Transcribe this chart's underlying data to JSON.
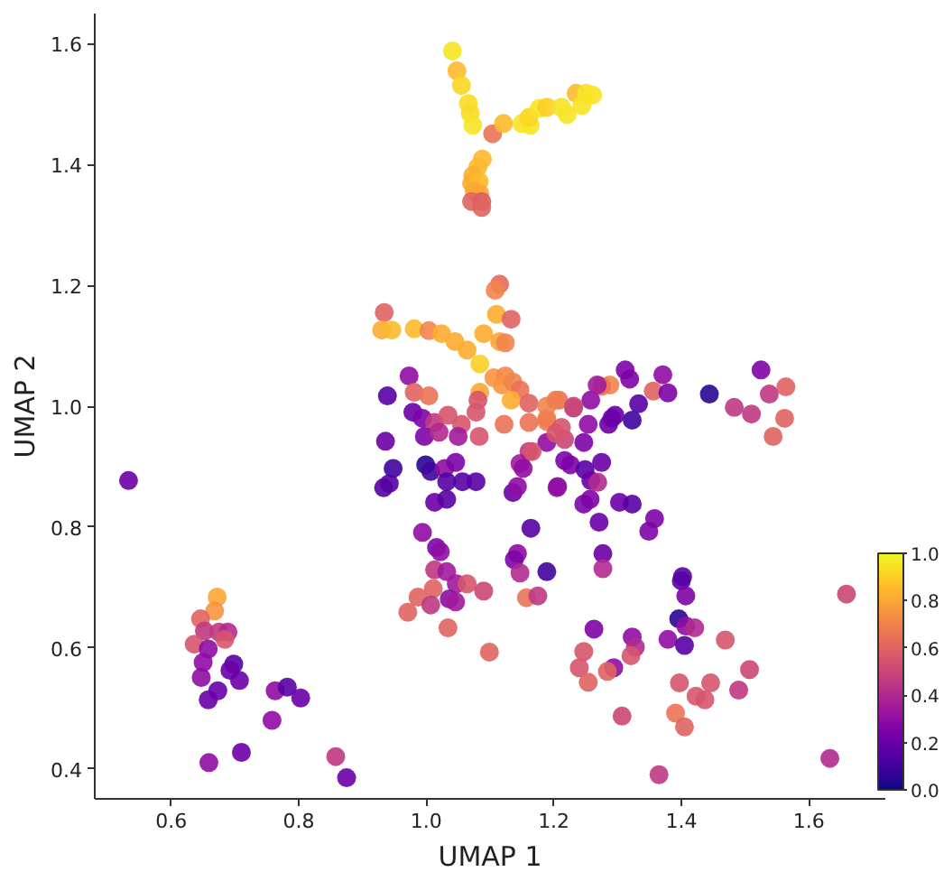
{
  "chart_data": {
    "type": "scatter",
    "xlabel": "UMAP 1",
    "ylabel": "UMAP 2",
    "x": [
      1.041,
      1.048,
      1.055,
      1.066,
      1.069,
      1.073,
      1.104,
      1.121,
      1.15,
      1.163,
      1.161,
      1.177,
      1.189,
      1.212,
      1.221,
      1.235,
      1.244,
      1.251,
      1.261,
      1.088,
      1.081,
      1.073,
      1.071,
      1.083,
      1.075,
      1.084,
      1.071,
      1.087,
      1.087,
      1.115,
      1.108,
      0.934,
      1.11,
      1.133,
      0.93,
      0.946,
      0.981,
      1.004,
      1.024,
      1.045,
      1.064,
      1.09,
      1.115,
      1.124,
      1.084,
      1.106,
      1.124,
      1.119,
      1.136,
      1.147,
      1.133,
      1.084,
      1.161,
      0.973,
      0.939,
      0.981,
      1.004,
      0.979,
      0.994,
      1.013,
      1.034,
      1.055,
      1.078,
      1.081,
      0.936,
      0.997,
      1.02,
      1.05,
      1.083,
      1.122,
      1.161,
      1.189,
      1.189,
      1.161,
      0.948,
      0.942,
      0.933,
      0.999,
      1.007,
      1.029,
      1.046,
      1.032,
      1.057,
      1.078,
      1.013,
      1.032,
      1.147,
      1.152,
      1.136,
      1.143,
      1.205,
      0.994,
      1.016,
      1.022,
      1.164,
      1.143,
      1.138,
      1.147,
      1.013,
      1.032,
      1.189,
      1.277,
      1.277,
      1.312,
      1.371,
      1.319,
      1.288,
      1.275,
      1.356,
      1.379,
      1.444,
      1.525,
      1.538,
      1.564,
      1.483,
      1.51,
      1.562,
      1.544,
      1.333,
      1.323,
      1.296,
      1.286,
      1.254,
      1.258,
      1.231,
      1.208,
      1.247,
      1.217,
      1.275,
      1.226,
      1.249,
      1.258,
      1.269,
      1.206,
      1.247,
      1.257,
      1.303,
      1.323,
      1.358,
      1.349,
      1.271,
      1.402,
      1.047,
      1.064,
      1.09,
      1.036,
      1.046,
      1.034,
      1.099,
      1.157,
      1.175,
      1.263,
      1.323,
      1.328,
      1.321,
      1.294,
      1.284,
      1.247,
      1.24,
      1.254,
      1.307,
      1.365,
      1.4,
      1.407,
      1.396,
      1.407,
      1.421,
      1.379,
      1.405,
      1.469,
      1.507,
      1.49,
      1.397,
      1.423,
      1.437,
      1.446,
      1.391,
      1.405,
      1.633,
      1.659,
      0.533,
      1.011,
      0.987,
      0.971,
      1.007,
      0.672,
      0.668,
      0.646,
      0.652,
      0.675,
      0.689,
      0.684,
      0.636,
      0.658,
      0.65,
      0.647,
      0.698,
      0.692,
      0.707,
      0.673,
      0.658,
      0.763,
      0.782,
      0.803,
      0.758,
      0.71,
      0.659,
      0.858,
      0.875,
      1.189,
      1.189,
      1.203,
      1.166,
      1.203,
      1.231,
      1.268,
      1.291,
      1.217,
      1.212
    ],
    "values": [
      1.588,
      1.555,
      1.531,
      1.501,
      1.485,
      1.465,
      1.451,
      1.468,
      1.468,
      1.465,
      1.478,
      1.493,
      1.495,
      1.495,
      1.483,
      1.518,
      1.498,
      1.518,
      1.515,
      1.409,
      1.396,
      1.382,
      1.369,
      1.372,
      1.356,
      1.352,
      1.339,
      1.339,
      1.329,
      1.202,
      1.192,
      1.155,
      1.152,
      1.144,
      1.126,
      1.126,
      1.128,
      1.125,
      1.12,
      1.107,
      1.093,
      1.12,
      1.107,
      1.105,
      1.07,
      1.047,
      1.05,
      1.035,
      1.04,
      1.027,
      1.01,
      1.023,
      1.005,
      1.05,
      1.017,
      1.023,
      1.017,
      0.99,
      0.98,
      0.973,
      0.985,
      0.97,
      0.99,
      1.01,
      0.942,
      0.95,
      0.957,
      0.95,
      0.95,
      0.97,
      0.973,
      0.98,
      0.94,
      0.925,
      0.897,
      0.872,
      0.865,
      0.903,
      0.892,
      0.897,
      0.907,
      0.875,
      0.875,
      0.875,
      0.841,
      0.846,
      0.905,
      0.897,
      0.857,
      0.867,
      0.865,
      0.791,
      0.766,
      0.759,
      0.798,
      0.756,
      0.746,
      0.724,
      0.729,
      0.726,
      0.726,
      0.756,
      0.731,
      1.06,
      1.052,
      1.045,
      1.035,
      1.033,
      1.025,
      1.022,
      1.02,
      1.06,
      1.02,
      1.032,
      0.998,
      0.987,
      0.98,
      0.95,
      1.004,
      0.977,
      0.985,
      0.97,
      0.97,
      1.01,
      0.997,
      1.01,
      0.94,
      0.945,
      0.907,
      0.903,
      0.895,
      0.877,
      0.874,
      0.867,
      0.838,
      0.846,
      0.841,
      0.838,
      0.814,
      0.793,
      0.808,
      0.718,
      0.706,
      0.706,
      0.694,
      0.681,
      0.676,
      0.633,
      0.593,
      0.683,
      0.686,
      0.631,
      0.618,
      0.601,
      0.587,
      0.567,
      0.561,
      0.594,
      0.567,
      0.543,
      0.487,
      0.39,
      0.711,
      0.686,
      0.648,
      0.636,
      0.633,
      0.614,
      0.604,
      0.613,
      0.564,
      0.53,
      0.542,
      0.52,
      0.514,
      0.542,
      0.492,
      0.469,
      0.417,
      0.689,
      0.877,
      0.698,
      0.684,
      0.659,
      0.671,
      0.684,
      0.661,
      0.648,
      0.628,
      0.626,
      0.626,
      0.614,
      0.606,
      0.598,
      0.576,
      0.551,
      0.573,
      0.563,
      0.546,
      0.529,
      0.514,
      0.529,
      0.535,
      0.517,
      0.48,
      0.427,
      0.41,
      0.42,
      0.385,
      1.0,
      0.975,
      0.955,
      0.925,
      1.01,
      1.0,
      1.035,
      0.98,
      0.91,
      0.965
    ],
    "cvalues": [
      0.95,
      0.85,
      0.92,
      0.93,
      0.93,
      0.95,
      0.65,
      0.85,
      0.95,
      0.95,
      0.92,
      0.95,
      0.9,
      0.95,
      0.95,
      0.85,
      0.95,
      0.95,
      0.95,
      0.85,
      0.85,
      0.82,
      0.82,
      0.85,
      0.8,
      0.8,
      0.6,
      0.58,
      0.6,
      0.62,
      0.7,
      0.6,
      0.82,
      0.6,
      0.82,
      0.85,
      0.85,
      0.7,
      0.82,
      0.82,
      0.82,
      0.82,
      0.8,
      0.7,
      0.9,
      0.75,
      0.72,
      0.75,
      0.7,
      0.65,
      0.82,
      0.8,
      0.6,
      0.3,
      0.15,
      0.6,
      0.65,
      0.2,
      0.25,
      0.45,
      0.55,
      0.55,
      0.55,
      0.55,
      0.2,
      0.25,
      0.4,
      0.35,
      0.55,
      0.65,
      0.65,
      0.68,
      0.3,
      0.45,
      0.1,
      0.15,
      0.15,
      0.05,
      0.1,
      0.3,
      0.25,
      0.15,
      0.15,
      0.15,
      0.2,
      0.15,
      0.35,
      0.3,
      0.2,
      0.3,
      0.35,
      0.3,
      0.25,
      0.3,
      0.15,
      0.3,
      0.25,
      0.4,
      0.45,
      0.35,
      0.1,
      0.2,
      0.4,
      0.25,
      0.3,
      0.25,
      0.7,
      0.65,
      0.6,
      0.25,
      0.05,
      0.25,
      0.45,
      0.6,
      0.45,
      0.45,
      0.6,
      0.6,
      0.15,
      0.1,
      0.2,
      0.2,
      0.3,
      0.3,
      0.45,
      0.65,
      0.25,
      0.5,
      0.2,
      0.25,
      0.15,
      0.2,
      0.4,
      0.3,
      0.25,
      0.25,
      0.2,
      0.15,
      0.25,
      0.25,
      0.2,
      0.15,
      0.35,
      0.55,
      0.5,
      0.3,
      0.35,
      0.6,
      0.6,
      0.65,
      0.45,
      0.25,
      0.3,
      0.4,
      0.55,
      0.3,
      0.6,
      0.55,
      0.55,
      0.6,
      0.5,
      0.45,
      0.15,
      0.25,
      0.05,
      0.3,
      0.4,
      0.3,
      0.15,
      0.55,
      0.5,
      0.45,
      0.55,
      0.55,
      0.55,
      0.55,
      0.65,
      0.6,
      0.4,
      0.5,
      0.2,
      0.6,
      0.6,
      0.6,
      0.45,
      0.8,
      0.75,
      0.6,
      0.45,
      0.45,
      0.4,
      0.55,
      0.55,
      0.3,
      0.3,
      0.3,
      0.15,
      0.2,
      0.2,
      0.2,
      0.2,
      0.3,
      0.15,
      0.2,
      0.3,
      0.2,
      0.3,
      0.45,
      0.2,
      0.7,
      0.68,
      0.55,
      0.55,
      0.68,
      0.5,
      0.35,
      0.2,
      0.25,
      0.55
    ],
    "xlim": [
      0.48,
      1.72
    ],
    "ylim": [
      0.35,
      1.65
    ],
    "xticks": [
      0.6,
      0.8,
      {
        "value": 1,
        "label": "1.0"
      },
      1.2,
      1.4,
      1.6
    ],
    "yticks": [
      0.4,
      0.6,
      0.8,
      {
        "value": 1,
        "label": "1.0"
      },
      1.2,
      1.4,
      1.6
    ],
    "clim": [
      0,
      1
    ],
    "cticks": [
      {
        "value": 0,
        "label": "0.0"
      },
      0.2,
      0.4,
      0.6,
      0.8,
      {
        "value": 1,
        "label": "1.0"
      }
    ],
    "marker": "circle",
    "grid": false
  }
}
